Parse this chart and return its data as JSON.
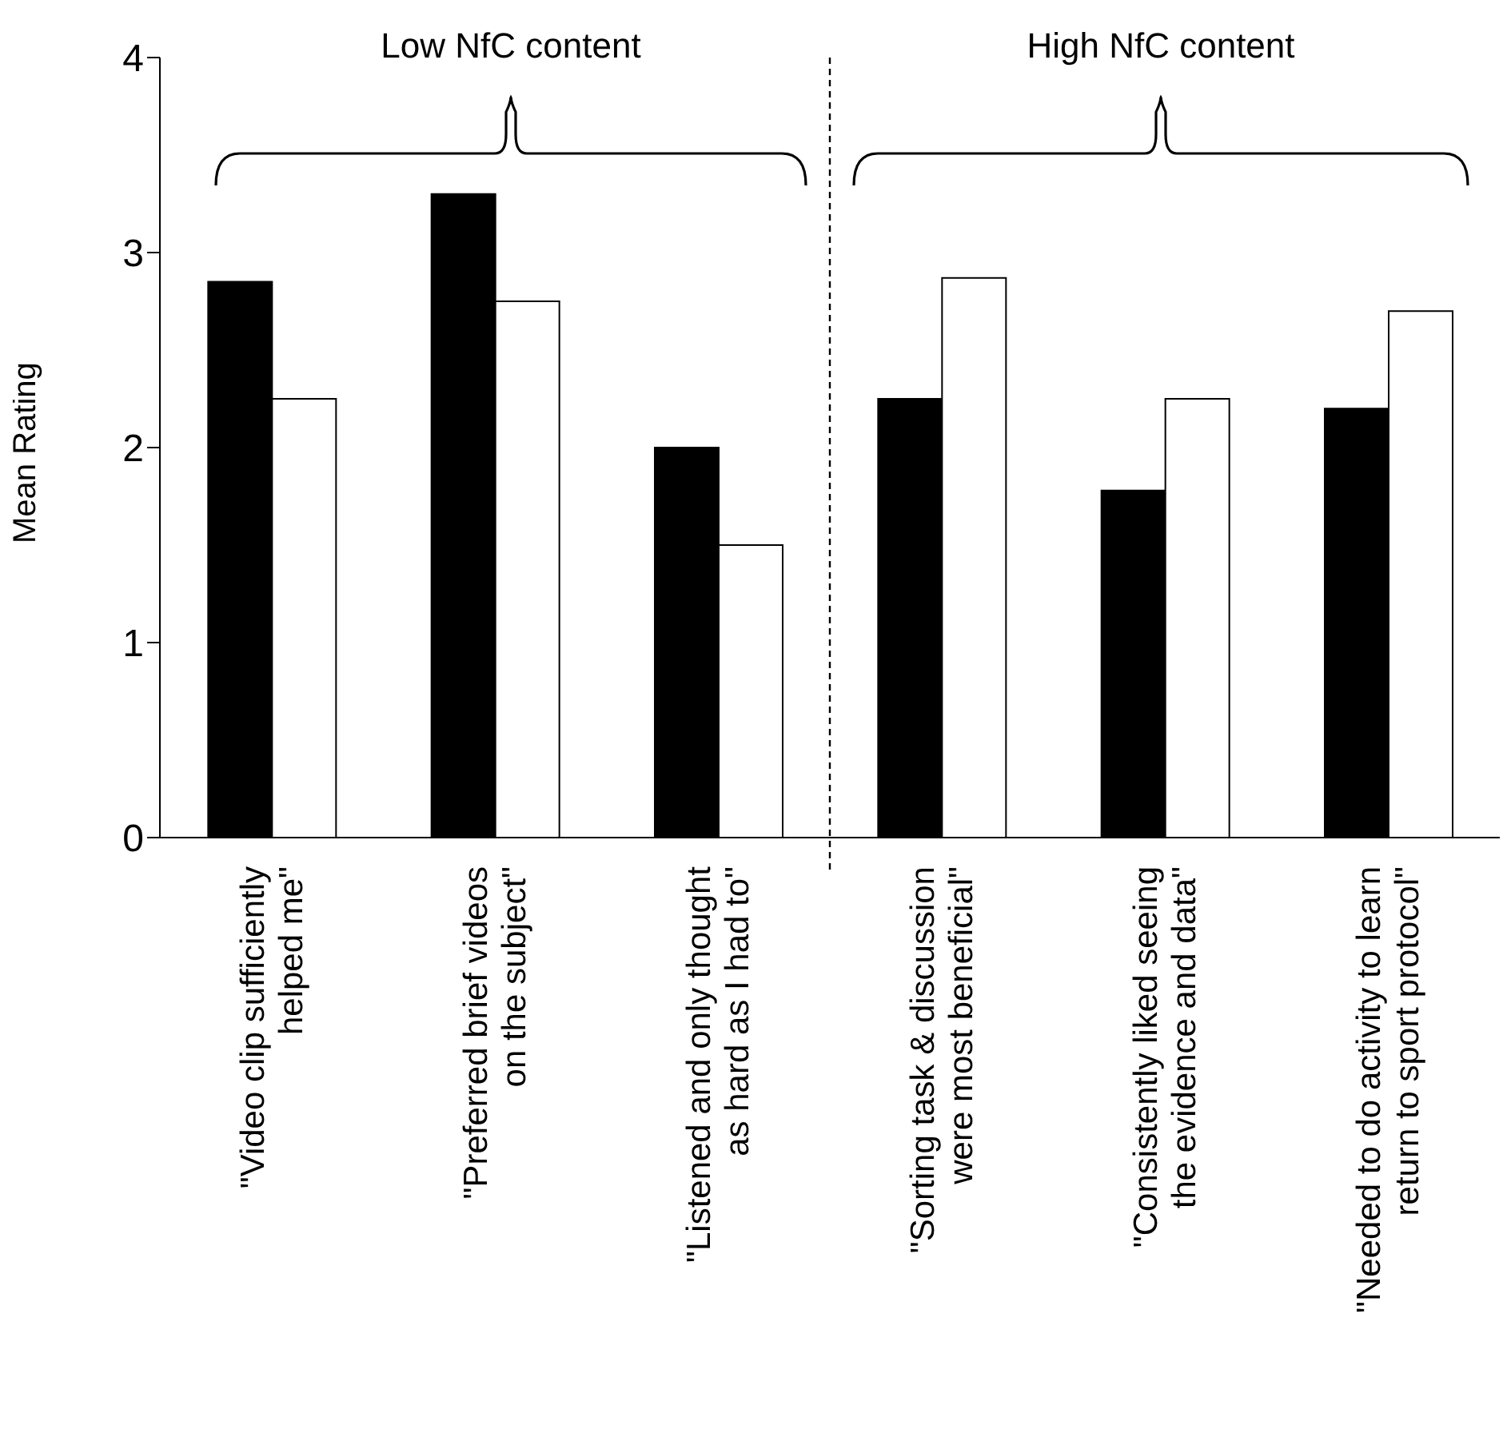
{
  "chart_data": {
    "type": "bar",
    "ylabel": "Mean Rating",
    "categories": [
      "\"Video clip sufficiently\nhelped me\"",
      "\"Preferred brief videos\non the subject\"",
      "\"Listened and only thought\nas hard as I had to\"",
      "\"Sorting task & discussion\nwere most beneficial\"",
      "\"Consistently liked seeing\nthe evidence and data\"",
      "\"Needed to do activity to learn\nreturn to sport protocol\""
    ],
    "series": [
      {
        "color": "#000000",
        "values": [
          2.85,
          3.3,
          2.0,
          2.25,
          1.78,
          2.2
        ]
      },
      {
        "color": "#ffffff",
        "values": [
          2.25,
          2.75,
          1.5,
          2.87,
          2.25,
          2.7
        ]
      }
    ],
    "ylim": [
      0,
      4
    ],
    "yticks": [
      0,
      1,
      2,
      3,
      4
    ],
    "grid": false,
    "legend": false,
    "annotations": [
      "Low NfC content",
      "High NfC content"
    ]
  }
}
